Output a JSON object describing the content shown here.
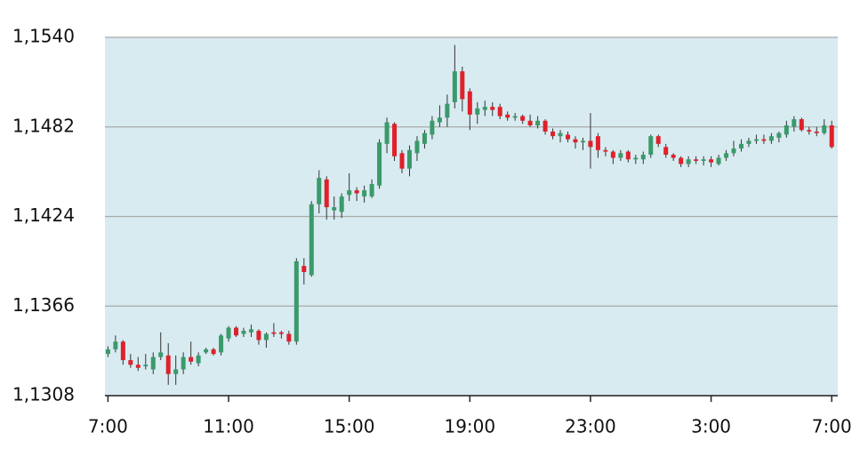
{
  "chart_data": {
    "type": "candlestick",
    "x": [
      0,
      0.25,
      0.5,
      0.75,
      1,
      1.25,
      1.5,
      1.75,
      2,
      2.25,
      2.5,
      2.75,
      3,
      3.25,
      3.5,
      3.75,
      4,
      4.25,
      4.5,
      4.75,
      5,
      5.25,
      5.5,
      5.75,
      6,
      6.25,
      6.5,
      6.75,
      7,
      7.25,
      7.5,
      7.75,
      8,
      8.25,
      8.5,
      8.75,
      9,
      9.25,
      9.5,
      9.75,
      10,
      10.25,
      10.5,
      10.75,
      11,
      11.25,
      11.5,
      11.75,
      12,
      12.25,
      12.5,
      12.75,
      13,
      13.25,
      13.5,
      13.75,
      14,
      14.25,
      14.5,
      14.75,
      15,
      15.25,
      15.5,
      15.75,
      16,
      16.25,
      16.5,
      16.75,
      17,
      17.25,
      17.5,
      17.75,
      18,
      18.25,
      18.5,
      18.75,
      19,
      19.25,
      19.5,
      19.75,
      20,
      20.25,
      20.5,
      20.75,
      21,
      21.25,
      21.5,
      21.75,
      22,
      22.25,
      22.5,
      22.75,
      23,
      23.25,
      23.5,
      23.75,
      24
    ],
    "open": [
      1.1335,
      1.1338,
      1.1343,
      1.1331,
      1.1328,
      1.1327,
      1.1325,
      1.1333,
      1.1334,
      1.1322,
      1.1325,
      1.1333,
      1.1329,
      1.1336,
      1.1338,
      1.1336,
      1.1345,
      1.1352,
      1.1348,
      1.1349,
      1.135,
      1.1344,
      1.1349,
      1.1349,
      1.1348,
      1.1343,
      1.1392,
      1.1386,
      1.1432,
      1.1448,
      1.1428,
      1.1427,
      1.1438,
      1.1441,
      1.1437,
      1.1437,
      1.1444,
      1.1471,
      1.1484,
      1.1465,
      1.1455,
      1.1465,
      1.1471,
      1.1477,
      1.1485,
      1.1488,
      1.1498,
      1.1518,
      1.1505,
      1.149,
      1.1493,
      1.1495,
      1.1495,
      1.149,
      1.1488,
      1.1489,
      1.1486,
      1.1483,
      1.1486,
      1.1479,
      1.1476,
      1.1477,
      1.1474,
      1.1472,
      1.1473,
      1.1476,
      1.1467,
      1.1466,
      1.1462,
      1.1466,
      1.1461,
      1.1461,
      1.1464,
      1.1476,
      1.1469,
      1.1464,
      1.1462,
      1.1458,
      1.1461,
      1.146,
      1.1461,
      1.1458,
      1.1462,
      1.1465,
      1.1468,
      1.1471,
      1.1473,
      1.1474,
      1.1473,
      1.1475,
      1.1477,
      1.1482,
      1.1487,
      1.148,
      1.1479,
      1.1478,
      1.1483
    ],
    "high": [
      1.134,
      1.1347,
      1.1344,
      1.1335,
      1.1333,
      1.1335,
      1.1336,
      1.1349,
      1.1342,
      1.1334,
      1.1336,
      1.1343,
      1.1336,
      1.1339,
      1.1339,
      1.1348,
      1.1353,
      1.1353,
      1.1352,
      1.1354,
      1.1351,
      1.1349,
      1.1355,
      1.135,
      1.135,
      1.1397,
      1.1397,
      1.1434,
      1.1454,
      1.145,
      1.1437,
      1.1439,
      1.1452,
      1.1443,
      1.1444,
      1.1448,
      1.1474,
      1.1488,
      1.1485,
      1.1467,
      1.147,
      1.1476,
      1.148,
      1.1489,
      1.1496,
      1.1503,
      1.1535,
      1.1521,
      1.1507,
      1.1498,
      1.1499,
      1.1498,
      1.1497,
      1.1492,
      1.1491,
      1.149,
      1.149,
      1.1489,
      1.1487,
      1.1481,
      1.148,
      1.1479,
      1.1476,
      1.1475,
      1.1491,
      1.1478,
      1.1469,
      1.1467,
      1.1467,
      1.1467,
      1.1464,
      1.1466,
      1.1477,
      1.1477,
      1.1471,
      1.1465,
      1.1463,
      1.1463,
      1.1463,
      1.1463,
      1.1463,
      1.1464,
      1.1467,
      1.1473,
      1.1474,
      1.1475,
      1.1477,
      1.1477,
      1.1478,
      1.1479,
      1.1486,
      1.1489,
      1.1488,
      1.1482,
      1.1482,
      1.1487,
      1.1486
    ],
    "low": [
      1.1333,
      1.1336,
      1.1328,
      1.1326,
      1.1324,
      1.1325,
      1.1322,
      1.1331,
      1.1315,
      1.1315,
      1.1322,
      1.1328,
      1.1327,
      1.1335,
      1.1334,
      1.1334,
      1.1343,
      1.1346,
      1.1346,
      1.1346,
      1.1341,
      1.1339,
      1.1346,
      1.1345,
      1.1341,
      1.1341,
      1.138,
      1.1385,
      1.1426,
      1.1422,
      1.1422,
      1.1423,
      1.1434,
      1.1434,
      1.1433,
      1.1436,
      1.1442,
      1.1465,
      1.146,
      1.1452,
      1.145,
      1.146,
      1.1468,
      1.1474,
      1.1482,
      1.1482,
      1.1494,
      1.1492,
      1.148,
      1.1484,
      1.1489,
      1.1489,
      1.1487,
      1.1486,
      1.1486,
      1.1484,
      1.1482,
      1.1481,
      1.1477,
      1.1474,
      1.1472,
      1.1472,
      1.1468,
      1.1467,
      1.1455,
      1.1462,
      1.1463,
      1.1458,
      1.146,
      1.1459,
      1.1458,
      1.1458,
      1.1462,
      1.1469,
      1.1462,
      1.146,
      1.1456,
      1.1456,
      1.1458,
      1.1457,
      1.1456,
      1.1457,
      1.146,
      1.1463,
      1.1466,
      1.1469,
      1.1471,
      1.1471,
      1.1471,
      1.1472,
      1.1475,
      1.1479,
      1.1479,
      1.1477,
      1.1476,
      1.1477,
      1.1468
    ],
    "close": [
      1.1338,
      1.1343,
      1.1331,
      1.1328,
      1.1326,
      1.1328,
      1.1333,
      1.1336,
      1.1322,
      1.1325,
      1.1333,
      1.133,
      1.1334,
      1.1338,
      1.1335,
      1.1347,
      1.1352,
      1.1347,
      1.135,
      1.1351,
      1.1344,
      1.1348,
      1.1348,
      1.1348,
      1.1343,
      1.1395,
      1.1388,
      1.1432,
      1.1449,
      1.143,
      1.143,
      1.1437,
      1.1441,
      1.1439,
      1.1441,
      1.1445,
      1.1472,
      1.1485,
      1.1463,
      1.1455,
      1.1467,
      1.1473,
      1.1478,
      1.1486,
      1.1488,
      1.1497,
      1.1518,
      1.15,
      1.149,
      1.1494,
      1.1495,
      1.1493,
      1.1489,
      1.1488,
      1.1489,
      1.1486,
      1.1483,
      1.1486,
      1.1479,
      1.1476,
      1.1478,
      1.1474,
      1.1472,
      1.1473,
      1.1469,
      1.1467,
      1.1466,
      1.1462,
      1.1465,
      1.1461,
      1.1462,
      1.1464,
      1.1476,
      1.1471,
      1.1464,
      1.1462,
      1.1458,
      1.1461,
      1.146,
      1.1461,
      1.1459,
      1.1462,
      1.1465,
      1.1468,
      1.1471,
      1.1473,
      1.1474,
      1.1473,
      1.1476,
      1.1478,
      1.1483,
      1.1487,
      1.148,
      1.1479,
      1.1478,
      1.1483,
      1.1469
    ],
    "up_color": "#3a9a6a",
    "down_color": "#e0202a",
    "background": "#d8ebf1",
    "grid": true,
    "xlim": [
      -0.1,
      24.2
    ],
    "xticks": [
      {
        "value": 0,
        "label": "7:00"
      },
      {
        "value": 4,
        "label": "11:00"
      },
      {
        "value": 8,
        "label": "15:00"
      },
      {
        "value": 12,
        "label": "19:00"
      },
      {
        "value": 16,
        "label": "23:00"
      },
      {
        "value": 20,
        "label": "3:00"
      },
      {
        "value": 24,
        "label": "7:00"
      }
    ],
    "ylim": [
      1.1308,
      1.154
    ],
    "yticks": [
      {
        "value": 1.1308,
        "label": "1,1308"
      },
      {
        "value": 1.1366,
        "label": "1,1366"
      },
      {
        "value": 1.1424,
        "label": "1,1424"
      },
      {
        "value": 1.1482,
        "label": "1,1482"
      },
      {
        "value": 1.154,
        "label": "1,1540"
      }
    ]
  }
}
